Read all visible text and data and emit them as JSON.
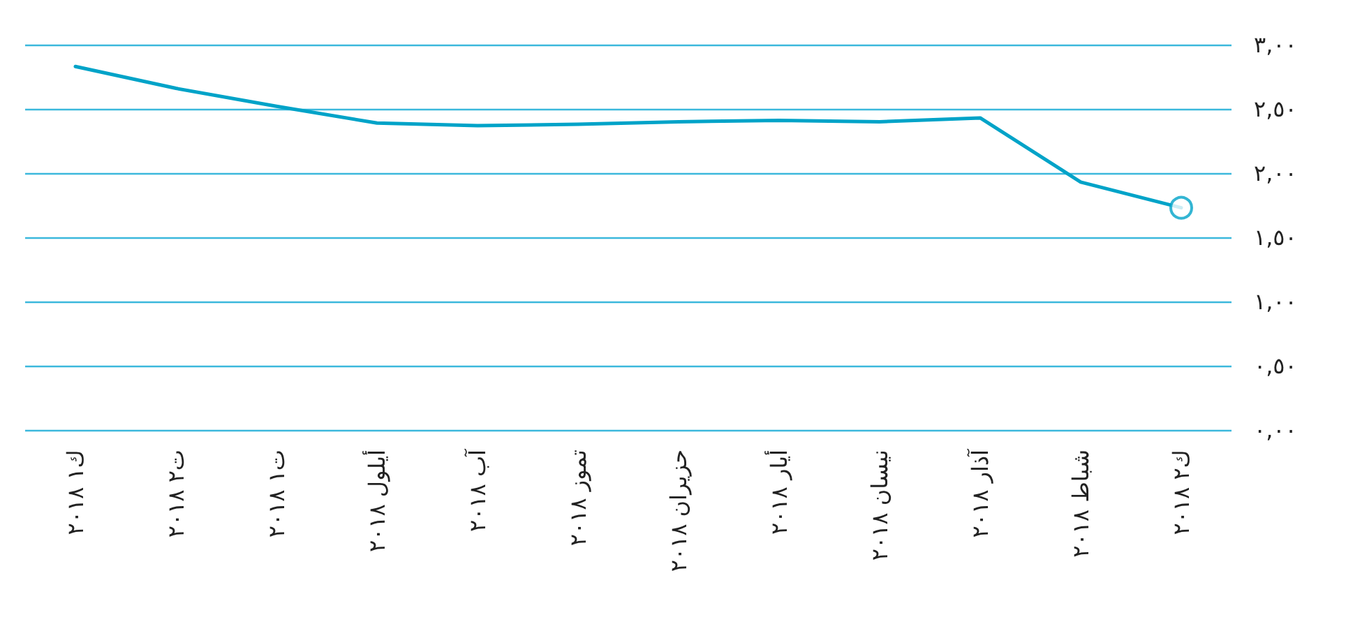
{
  "chart_data": {
    "type": "line",
    "categories": [
      "ك١ ٢٠١٨",
      "ت٢ ٢٠١٨",
      "ت١ ٢٠١٨",
      "أيلول ٢٠١٨",
      "آب ٢٠١٨",
      "تموز ٢٠١٨",
      "حزيران ٢٠١٨",
      "أيار ٢٠١٨",
      "نيسان ٢٠١٨",
      "آذار ٢٠١٨",
      "شباط ٢٠١٨",
      "ك٢ ٢٠١٨"
    ],
    "series": [
      {
        "color": "#00a3c8",
        "marker": "none",
        "values": [
          2.83,
          2.66,
          2.52,
          2.39,
          2.37,
          2.38,
          2.4,
          2.41,
          2.4,
          2.43,
          1.93,
          1.73
        ]
      },
      {
        "type": "scatter",
        "color": "#00a3c8",
        "marker": "circle",
        "x": [
          "ك٢ ٢٠١٨"
        ],
        "values": [
          1.73
        ]
      }
    ],
    "ylim": [
      0,
      3
    ],
    "yticks": [
      {
        "value": 0,
        "label": "٠,٠٠"
      },
      {
        "value": 0.5,
        "label": "٠,٥٠"
      },
      {
        "value": 1,
        "label": "١,٠٠"
      },
      {
        "value": 1.5,
        "label": "١,٥٠"
      },
      {
        "value": 2,
        "label": "٢,٠٠"
      },
      {
        "value": 2.5,
        "label": "٢,٥٠"
      },
      {
        "value": 3,
        "label": "٣,٠٠"
      }
    ],
    "grid": "y",
    "line_style": "solid"
  }
}
